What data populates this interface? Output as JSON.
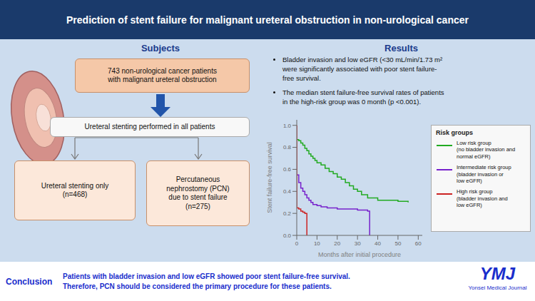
{
  "chart_data": {
    "type": "step",
    "title": "Prediction of stent failure for malignant ureteral obstruction in non-urological cancer",
    "xlabel": "Months after initial procedure",
    "ylabel": "Stent failure-free survival",
    "xlim": [
      0,
      62
    ],
    "xticks": [
      0,
      10,
      20,
      30,
      40,
      50,
      60
    ],
    "ylim": [
      0,
      1.05
    ],
    "yticks": [
      {
        "value": 0.0,
        "label": "0.0"
      },
      {
        "value": 0.2,
        "label": "0.2"
      },
      {
        "value": 0.4,
        "label": "0.4"
      },
      {
        "value": 0.6,
        "label": "0.6"
      },
      {
        "value": 0.8,
        "label": "0.8"
      },
      {
        "value": 1.0,
        "label": "1.0"
      }
    ],
    "grid": false,
    "legend": "right",
    "series": [
      {
        "name": "Low risk group\n(no bladder invasion and\nnormal eGFR)",
        "color": "#22aa22",
        "x": [
          0,
          1,
          2,
          3,
          4,
          5,
          6,
          7,
          8,
          9,
          10,
          12,
          14,
          16,
          18,
          20,
          22,
          24,
          26,
          28,
          30,
          32,
          35,
          40,
          50,
          55
        ],
        "values": [
          0.87,
          0.86,
          0.84,
          0.82,
          0.79,
          0.77,
          0.74,
          0.72,
          0.7,
          0.68,
          0.66,
          0.64,
          0.61,
          0.58,
          0.56,
          0.53,
          0.51,
          0.48,
          0.45,
          0.42,
          0.4,
          0.37,
          0.34,
          0.32,
          0.31,
          0.3
        ]
      },
      {
        "name": "Intermediate risk group\n(bladder invasion or\nlow eGFR)",
        "color": "#7722cc",
        "x": [
          0,
          1,
          2,
          3,
          4,
          5,
          6,
          7,
          8,
          10,
          12,
          15,
          20,
          25,
          30,
          35,
          36
        ],
        "values": [
          0.55,
          0.48,
          0.43,
          0.4,
          0.37,
          0.34,
          0.32,
          0.3,
          0.28,
          0.27,
          0.26,
          0.25,
          0.24,
          0.24,
          0.23,
          0.22,
          0.0
        ]
      },
      {
        "name": "High risk group\n(bladder invasion and\nlow eGFR)",
        "color": "#cc2222",
        "x": [
          0,
          0,
          1,
          2,
          3,
          4,
          5
        ],
        "values": [
          1.0,
          0.25,
          0.24,
          0.22,
          0.21,
          0.2,
          0.0
        ]
      }
    ],
    "annotations": [
      "Subjects",
      "743 non-urological cancer patients\nwith malignant ureteral obstruction",
      "Ureteral stenting performed in all patients",
      "Ureteral stenting only\n(n=468)",
      "Percutaneous\nnephrostomy (PCN)\ndue to stent failure\n(n=275)",
      "Results",
      "Bladder invasion and low eGFR (<30 mL/min/1.73 m²\nwere significantly associated with poor stent failure-\nfree survival.",
      "The median stent failure-free survival rates of patients\nin the high-risk group was 0 month (p <0.001).",
      "Conclusion",
      "Patients with bladder invasion and low eGFR showed poor stent failure-free survival.\nTherefore, PCN should be considered the primary procedure for these patients.",
      "YMJ",
      "Yonsei Medical Journal",
      "Risk groups"
    ]
  }
}
